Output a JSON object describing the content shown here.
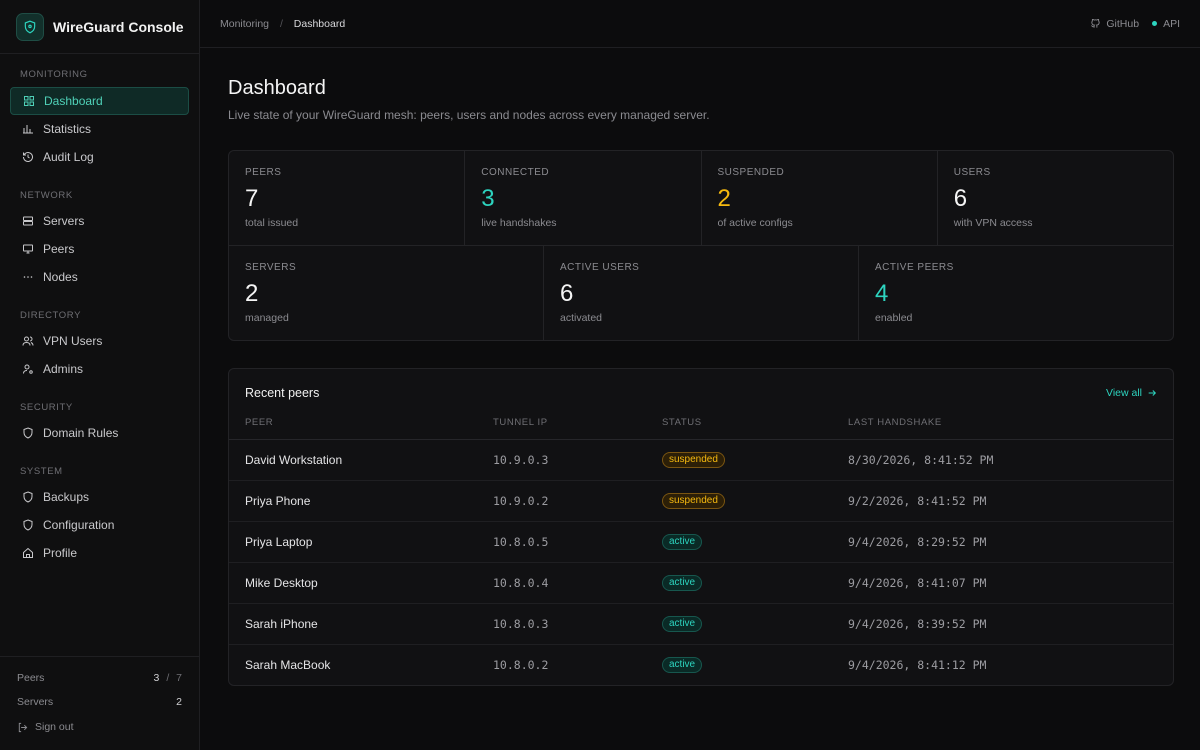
{
  "brand": {
    "title": "WireGuard Console"
  },
  "sidebar": {
    "sections": [
      {
        "heading": "MONITORING",
        "items": [
          {
            "label": "Dashboard",
            "icon": "dashboard-icon",
            "active": true
          },
          {
            "label": "Statistics",
            "icon": "bar-chart-icon"
          },
          {
            "label": "Audit Log",
            "icon": "history-icon"
          }
        ]
      },
      {
        "heading": "NETWORK",
        "items": [
          {
            "label": "Servers",
            "icon": "server-icon"
          },
          {
            "label": "Peers",
            "icon": "monitor-icon"
          },
          {
            "label": "Nodes",
            "icon": "dots-icon"
          }
        ]
      },
      {
        "heading": "DIRECTORY",
        "items": [
          {
            "label": "VPN Users",
            "icon": "users-icon"
          },
          {
            "label": "Admins",
            "icon": "user-cog-icon"
          }
        ]
      },
      {
        "heading": "SECURITY",
        "items": [
          {
            "label": "Domain Rules",
            "icon": "shield-icon"
          }
        ]
      },
      {
        "heading": "SYSTEM",
        "items": [
          {
            "label": "Backups",
            "icon": "shield-icon"
          },
          {
            "label": "Configuration",
            "icon": "shield-icon"
          },
          {
            "label": "Profile",
            "icon": "home-icon"
          }
        ]
      }
    ],
    "footer": {
      "peers_label": "Peers",
      "peers_active": "3",
      "peers_sep": "/",
      "peers_total": "7",
      "servers_label": "Servers",
      "servers_value": "2",
      "signout_label": "Sign out"
    }
  },
  "topbar": {
    "crumb_parent": "Monitoring",
    "crumb_sep": "/",
    "crumb_current": "Dashboard",
    "github_label": "GitHub",
    "api_label": "API"
  },
  "page": {
    "title": "Dashboard",
    "subtitle": "Live state of your WireGuard mesh: peers, users and nodes across every managed server."
  },
  "stats": {
    "row1": [
      {
        "label": "PEERS",
        "value": "7",
        "sub": "total issued",
        "tone": ""
      },
      {
        "label": "CONNECTED",
        "value": "3",
        "sub": "live handshakes",
        "tone": "teal"
      },
      {
        "label": "SUSPENDED",
        "value": "2",
        "sub": "of active configs",
        "tone": "amber"
      },
      {
        "label": "USERS",
        "value": "6",
        "sub": "with VPN access",
        "tone": ""
      }
    ],
    "row2": [
      {
        "label": "SERVERS",
        "value": "2",
        "sub": "managed",
        "tone": ""
      },
      {
        "label": "ACTIVE USERS",
        "value": "6",
        "sub": "activated",
        "tone": ""
      },
      {
        "label": "ACTIVE PEERS",
        "value": "4",
        "sub": "enabled",
        "tone": "teal"
      }
    ]
  },
  "recent": {
    "title": "Recent peers",
    "view_all": "View all",
    "columns": [
      "PEER",
      "TUNNEL IP",
      "STATUS",
      "LAST HANDSHAKE"
    ],
    "rows": [
      {
        "peer": "David Workstation",
        "ip": "10.9.0.3",
        "status": "suspended",
        "handshake": "8/30/2026, 8:41:52 PM"
      },
      {
        "peer": "Priya Phone",
        "ip": "10.9.0.2",
        "status": "suspended",
        "handshake": "9/2/2026, 8:41:52 PM"
      },
      {
        "peer": "Priya Laptop",
        "ip": "10.8.0.5",
        "status": "active",
        "handshake": "9/4/2026, 8:29:52 PM"
      },
      {
        "peer": "Mike Desktop",
        "ip": "10.8.0.4",
        "status": "active",
        "handshake": "9/4/2026, 8:41:07 PM"
      },
      {
        "peer": "Sarah iPhone",
        "ip": "10.8.0.3",
        "status": "active",
        "handshake": "9/4/2026, 8:39:52 PM"
      },
      {
        "peer": "Sarah MacBook",
        "ip": "10.8.0.2",
        "status": "active",
        "handshake": "9/4/2026, 8:41:12 PM"
      }
    ]
  },
  "colors": {
    "accent": "#2dd4bf",
    "warning": "#f5b90f",
    "background": "#0c0c0d"
  }
}
